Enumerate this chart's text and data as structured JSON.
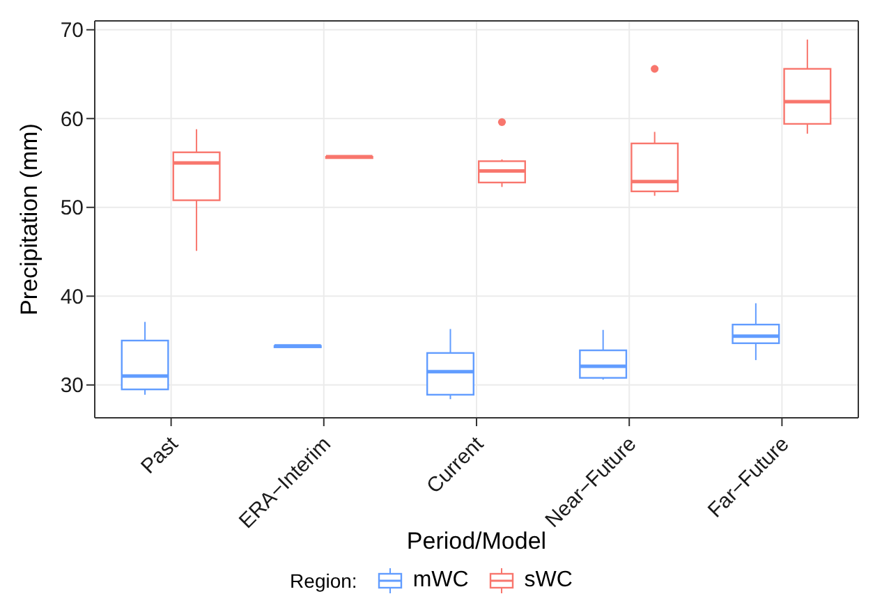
{
  "chart_data": {
    "type": "box",
    "xlabel": "Period/Model",
    "ylabel": "Precipitation (mm)",
    "legend_title": "Region:",
    "categories": [
      "Past",
      "ERA−Interim",
      "Current",
      "Near−Future",
      "Far−Future"
    ],
    "ylim": [
      26.3,
      71
    ],
    "yticks": [
      30,
      40,
      50,
      60,
      70
    ],
    "grid": true,
    "legend": "bottom",
    "series": [
      {
        "name": "mWC",
        "color": "#619cff",
        "boxes": [
          {
            "low": 28.9,
            "q1": 29.5,
            "median": 31.0,
            "q3": 35.0,
            "high": 37.1
          },
          {
            "low": 34.4,
            "q1": 34.4,
            "median": 34.4,
            "q3": 34.4,
            "high": 34.4
          },
          {
            "low": 28.4,
            "q1": 28.9,
            "median": 31.5,
            "q3": 33.6,
            "high": 36.3
          },
          {
            "low": 30.6,
            "q1": 30.8,
            "median": 32.1,
            "q3": 33.9,
            "high": 36.2
          },
          {
            "low": 32.8,
            "q1": 34.7,
            "median": 35.5,
            "q3": 36.8,
            "high": 39.2
          }
        ]
      },
      {
        "name": "sWC",
        "color": "#f8766d",
        "boxes": [
          {
            "low": 45.1,
            "q1": 50.8,
            "median": 55.0,
            "q3": 56.2,
            "high": 58.8
          },
          {
            "low": 55.7,
            "q1": 55.7,
            "median": 55.7,
            "q3": 55.7,
            "high": 55.7
          },
          {
            "low": 52.3,
            "q1": 52.8,
            "median": 54.1,
            "q3": 55.2,
            "high": 55.4,
            "outliers": [
              59.6
            ]
          },
          {
            "low": 51.3,
            "q1": 51.8,
            "median": 52.9,
            "q3": 57.2,
            "high": 58.5,
            "outliers": [
              65.6
            ]
          },
          {
            "low": 58.3,
            "q1": 59.4,
            "median": 61.9,
            "q3": 65.6,
            "high": 68.9
          }
        ]
      }
    ]
  }
}
